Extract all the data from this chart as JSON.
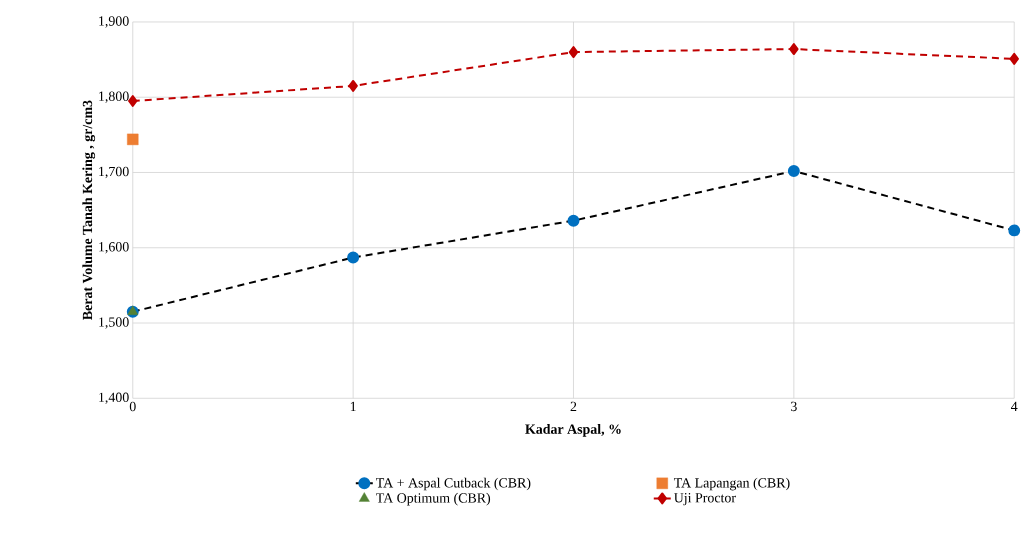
{
  "chart_data": {
    "type": "line",
    "xlabel": "Kadar Aspal, %",
    "ylabel": "Berat Volume Tanah Kering , gr/cm3",
    "xlim": [
      0,
      4
    ],
    "xticks": [
      0,
      1,
      2,
      3,
      4
    ],
    "ylim": [
      1400,
      1900
    ],
    "yticks": [
      {
        "value": 1400,
        "label": "1,400"
      },
      {
        "value": 1500,
        "label": "1,500"
      },
      {
        "value": 1600,
        "label": "1,600"
      },
      {
        "value": 1700,
        "label": "1,700"
      },
      {
        "value": 1800,
        "label": "1,800"
      },
      {
        "value": 1900,
        "label": "1,900"
      }
    ],
    "grid": true,
    "legend": "bottom",
    "series": [
      {
        "name": "TA + Aspal Cutback (CBR)",
        "color": "#000000",
        "colors": [
          "#0070c0",
          "#0070c0",
          "#0070c0",
          "#0070c0",
          "#0070c0"
        ],
        "marker": "circle",
        "line_style": "dashed",
        "x": [
          0,
          1,
          2,
          3,
          4
        ],
        "values": [
          1515,
          1587,
          1636,
          1702,
          1623
        ]
      },
      {
        "name": "TA Lapangan (CBR)",
        "type": "scatter",
        "color": "#ed7d31",
        "marker": "square",
        "x": [
          0
        ],
        "values": [
          1744
        ]
      },
      {
        "name": "TA Optimum (CBR)",
        "type": "scatter",
        "color": "#548235",
        "marker": "triangle",
        "x": [
          0
        ],
        "values": [
          1515
        ]
      },
      {
        "name": "Uji Proctor",
        "color": "#c00000",
        "marker": "diamond",
        "line_style": "dashed",
        "x": [
          0,
          1,
          2,
          3,
          4
        ],
        "values": [
          1795,
          1815,
          1860,
          1864,
          1851
        ]
      }
    ]
  }
}
